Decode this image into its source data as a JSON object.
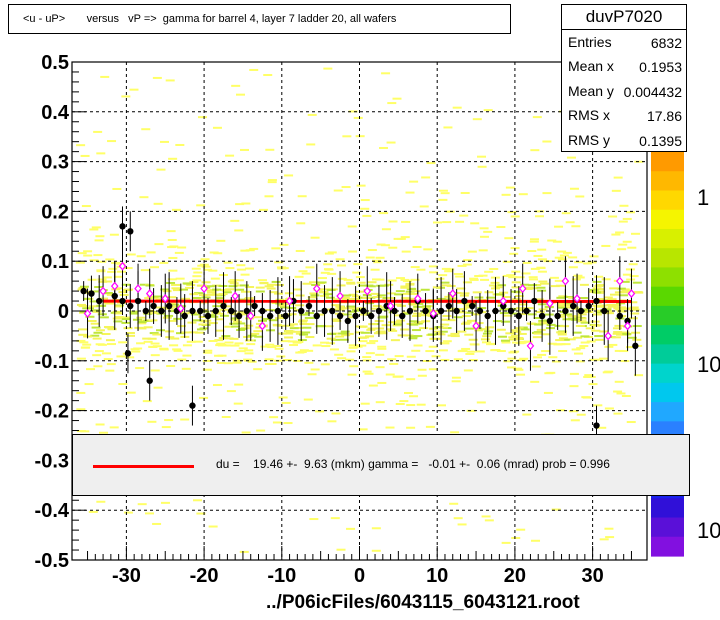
{
  "title": "<u - uP>       versus   vP =>  gamma for barrel 4, layer 7 ladder 20, all wafers",
  "stats": {
    "name": "duvP7020",
    "rows": [
      {
        "key": "Entries",
        "value": "6832"
      },
      {
        "key": "Mean x",
        "value": "0.1953"
      },
      {
        "key": "Mean y",
        "value": "0.004432"
      },
      {
        "key": "RMS x",
        "value": "17.86"
      },
      {
        "key": "RMS y",
        "value": "0.1395"
      }
    ]
  },
  "fit_text": "du =    19.46 +-  9.63 (mkm) gamma =   -0.01 +-  0.06 (mrad) prob = 0.996",
  "file_label": "../P06icFiles/6043115_6043121.root",
  "colors": {
    "fit_line": "#ff0000",
    "profile": "#000000",
    "open_markers": "#ff00ff",
    "scatter_low": "#ffff66",
    "scatter_mid": "#ccee33"
  },
  "chart_data": {
    "type": "scatter",
    "x_range": [
      -37,
      37
    ],
    "y_range": [
      -0.5,
      0.5
    ],
    "x_ticks": [
      -30,
      -20,
      -10,
      0,
      10,
      20,
      30
    ],
    "y_ticks": [
      0.5,
      0.4,
      0.3,
      0.2,
      0.1,
      0,
      -0.1,
      -0.2,
      -0.3,
      -0.4,
      -0.5
    ],
    "grid": true,
    "color_scale_labels": [
      "1",
      "10",
      "10"
    ],
    "fit": {
      "slope_per_x": -1e-05,
      "intercept": 0.0195
    },
    "profile_points": [
      {
        "x": -35.5,
        "y": 0.04
      },
      {
        "x": -34.5,
        "y": 0.035
      },
      {
        "x": -33.5,
        "y": 0.02
      },
      {
        "x": -31.5,
        "y": 0.03
      },
      {
        "x": -30.5,
        "y": 0.02
      },
      {
        "x": -29.5,
        "y": 0.01
      },
      {
        "x": -28.5,
        "y": 0.02
      },
      {
        "x": -27.5,
        "y": 0.0
      },
      {
        "x": -26.5,
        "y": 0.01
      },
      {
        "x": -25.5,
        "y": 0.0
      },
      {
        "x": -24.5,
        "y": 0.01
      },
      {
        "x": -23.5,
        "y": 0.0
      },
      {
        "x": -22.5,
        "y": -0.01
      },
      {
        "x": -21.5,
        "y": 0.0
      },
      {
        "x": -20.5,
        "y": 0.0
      },
      {
        "x": -19.5,
        "y": -0.01
      },
      {
        "x": -18.5,
        "y": 0.0
      },
      {
        "x": -17.5,
        "y": 0.01
      },
      {
        "x": -16.5,
        "y": 0.0
      },
      {
        "x": -15.5,
        "y": -0.01
      },
      {
        "x": -14.5,
        "y": 0.0
      },
      {
        "x": -13.5,
        "y": 0.01
      },
      {
        "x": -12.5,
        "y": 0.0
      },
      {
        "x": -11.5,
        "y": -0.01
      },
      {
        "x": -10.5,
        "y": 0.0
      },
      {
        "x": -9.5,
        "y": -0.01
      },
      {
        "x": -8.5,
        "y": 0.02
      },
      {
        "x": -7.5,
        "y": 0.0
      },
      {
        "x": -6.5,
        "y": 0.01
      },
      {
        "x": -5.5,
        "y": -0.01
      },
      {
        "x": -4.5,
        "y": 0.0
      },
      {
        "x": -3.5,
        "y": 0.0
      },
      {
        "x": -2.5,
        "y": -0.01
      },
      {
        "x": -1.5,
        "y": -0.02
      },
      {
        "x": -0.5,
        "y": -0.01
      },
      {
        "x": 0.5,
        "y": 0.0
      },
      {
        "x": 1.5,
        "y": -0.01
      },
      {
        "x": 2.5,
        "y": 0.0
      },
      {
        "x": 3.5,
        "y": 0.01
      },
      {
        "x": 4.5,
        "y": 0.0
      },
      {
        "x": 5.5,
        "y": -0.01
      },
      {
        "x": 6.5,
        "y": 0.0
      },
      {
        "x": 7.5,
        "y": 0.02
      },
      {
        "x": 8.5,
        "y": 0.0
      },
      {
        "x": 9.5,
        "y": -0.01
      },
      {
        "x": 10.5,
        "y": 0.0
      },
      {
        "x": 11.5,
        "y": 0.01
      },
      {
        "x": 12.5,
        "y": 0.0
      },
      {
        "x": 13.5,
        "y": 0.02
      },
      {
        "x": 14.5,
        "y": 0.01
      },
      {
        "x": 15.5,
        "y": 0.0
      },
      {
        "x": 16.5,
        "y": -0.01
      },
      {
        "x": 17.5,
        "y": 0.0
      },
      {
        "x": 18.5,
        "y": 0.01
      },
      {
        "x": 19.5,
        "y": 0.0
      },
      {
        "x": 20.5,
        "y": -0.01
      },
      {
        "x": 21.5,
        "y": 0.0
      },
      {
        "x": 22.5,
        "y": 0.02
      },
      {
        "x": 23.5,
        "y": -0.01
      },
      {
        "x": 24.5,
        "y": -0.02
      },
      {
        "x": 25.5,
        "y": -0.01
      },
      {
        "x": 26.5,
        "y": 0.0
      },
      {
        "x": 27.5,
        "y": 0.01
      },
      {
        "x": 28.5,
        "y": 0.0
      },
      {
        "x": 29.5,
        "y": 0.01
      },
      {
        "x": 30.5,
        "y": 0.02
      },
      {
        "x": 31.5,
        "y": 0.0
      },
      {
        "x": 33.5,
        "y": -0.01
      },
      {
        "x": 34.5,
        "y": -0.02
      },
      {
        "x": 35.5,
        "y": -0.07
      }
    ],
    "outlier_points": [
      {
        "x": -30.5,
        "y": 0.17
      },
      {
        "x": -29.5,
        "y": 0.16
      },
      {
        "x": -29.8,
        "y": -0.085
      },
      {
        "x": -27.0,
        "y": -0.14
      },
      {
        "x": -21.5,
        "y": -0.19
      },
      {
        "x": 30.5,
        "y": -0.23
      }
    ],
    "open_markers": [
      {
        "x": -35.0,
        "y": -0.005
      },
      {
        "x": -33.0,
        "y": 0.04
      },
      {
        "x": -31.5,
        "y": 0.05
      },
      {
        "x": -30.5,
        "y": 0.09
      },
      {
        "x": -28.5,
        "y": 0.045
      },
      {
        "x": -27.0,
        "y": 0.035
      },
      {
        "x": -25.0,
        "y": 0.025
      },
      {
        "x": -23.0,
        "y": 0.005
      },
      {
        "x": -20.0,
        "y": 0.045
      },
      {
        "x": -16.0,
        "y": 0.03
      },
      {
        "x": -14.0,
        "y": -0.01
      },
      {
        "x": -12.5,
        "y": -0.03
      },
      {
        "x": -9.0,
        "y": 0.02
      },
      {
        "x": -5.5,
        "y": 0.045
      },
      {
        "x": -2.5,
        "y": 0.03
      },
      {
        "x": 1.0,
        "y": 0.04
      },
      {
        "x": 4.0,
        "y": 0.01
      },
      {
        "x": 7.5,
        "y": 0.025
      },
      {
        "x": 9.5,
        "y": -0.005
      },
      {
        "x": 12.0,
        "y": 0.035
      },
      {
        "x": 15.0,
        "y": -0.03
      },
      {
        "x": 18.5,
        "y": 0.02
      },
      {
        "x": 21.0,
        "y": 0.045
      },
      {
        "x": 22.0,
        "y": -0.07
      },
      {
        "x": 24.5,
        "y": 0.015
      },
      {
        "x": 26.5,
        "y": 0.06
      },
      {
        "x": 28.0,
        "y": 0.025
      },
      {
        "x": 32.0,
        "y": -0.05
      },
      {
        "x": 33.5,
        "y": 0.06
      },
      {
        "x": 34.5,
        "y": -0.03
      },
      {
        "x": 35.0,
        "y": 0.035
      }
    ]
  }
}
